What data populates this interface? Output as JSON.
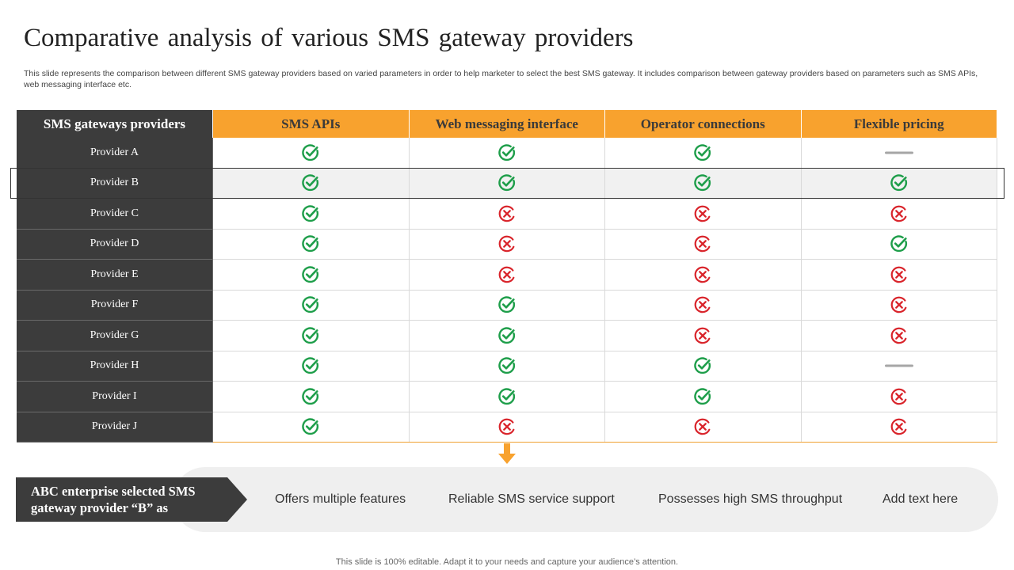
{
  "title": "Comparative analysis of various SMS gateway providers",
  "subtitle": "This slide represents the comparison between different SMS gateway providers based on varied parameters in order to help marketer to select the best SMS  gateway. It includes comparison between gateway providers based on parameters such as SMS APIs,  web messaging interface etc.",
  "table": {
    "headers": [
      "SMS gateways providers",
      "SMS APIs",
      "Web messaging interface",
      "Operator connections",
      "Flexible pricing"
    ],
    "highlighted_row": "Provider B",
    "rows": [
      {
        "name": "Provider A",
        "values": [
          "check",
          "check",
          "check",
          "dash"
        ]
      },
      {
        "name": "Provider B",
        "values": [
          "check",
          "check",
          "check",
          "check"
        ]
      },
      {
        "name": "Provider C",
        "values": [
          "check",
          "cross",
          "cross",
          "cross"
        ]
      },
      {
        "name": "Provider D",
        "values": [
          "check",
          "cross",
          "cross",
          "check"
        ]
      },
      {
        "name": "Provider E",
        "values": [
          "check",
          "cross",
          "cross",
          "cross"
        ]
      },
      {
        "name": "Provider F",
        "values": [
          "check",
          "check",
          "cross",
          "cross"
        ]
      },
      {
        "name": "Provider G",
        "values": [
          "check",
          "check",
          "cross",
          "cross"
        ]
      },
      {
        "name": "Provider H",
        "values": [
          "check",
          "check",
          "check",
          "dash"
        ]
      },
      {
        "name": "Provider I",
        "values": [
          "check",
          "check",
          "check",
          "cross"
        ]
      },
      {
        "name": "Provider J",
        "values": [
          "check",
          "cross",
          "cross",
          "cross"
        ]
      }
    ]
  },
  "callout": "ABC enterprise selected SMS gateway provider “B” as",
  "features": [
    "Offers multiple features",
    "Reliable SMS service support",
    "Possesses high SMS throughput",
    "Add text here"
  ],
  "footer": "This slide is 100% editable. Adapt it to your needs and capture your audience’s attention.",
  "colors": {
    "header_orange": "#f8a22e",
    "dark_gray": "#3c3c3c",
    "check_green": "#1e9e4a",
    "cross_red": "#d9242b",
    "dash_gray": "#a6a6a6",
    "pill_bg": "#efefef"
  },
  "icons": {
    "check": "check-circle-icon",
    "cross": "x-circle-icon",
    "dash": "dash-icon",
    "arrow": "arrow-down-icon"
  }
}
